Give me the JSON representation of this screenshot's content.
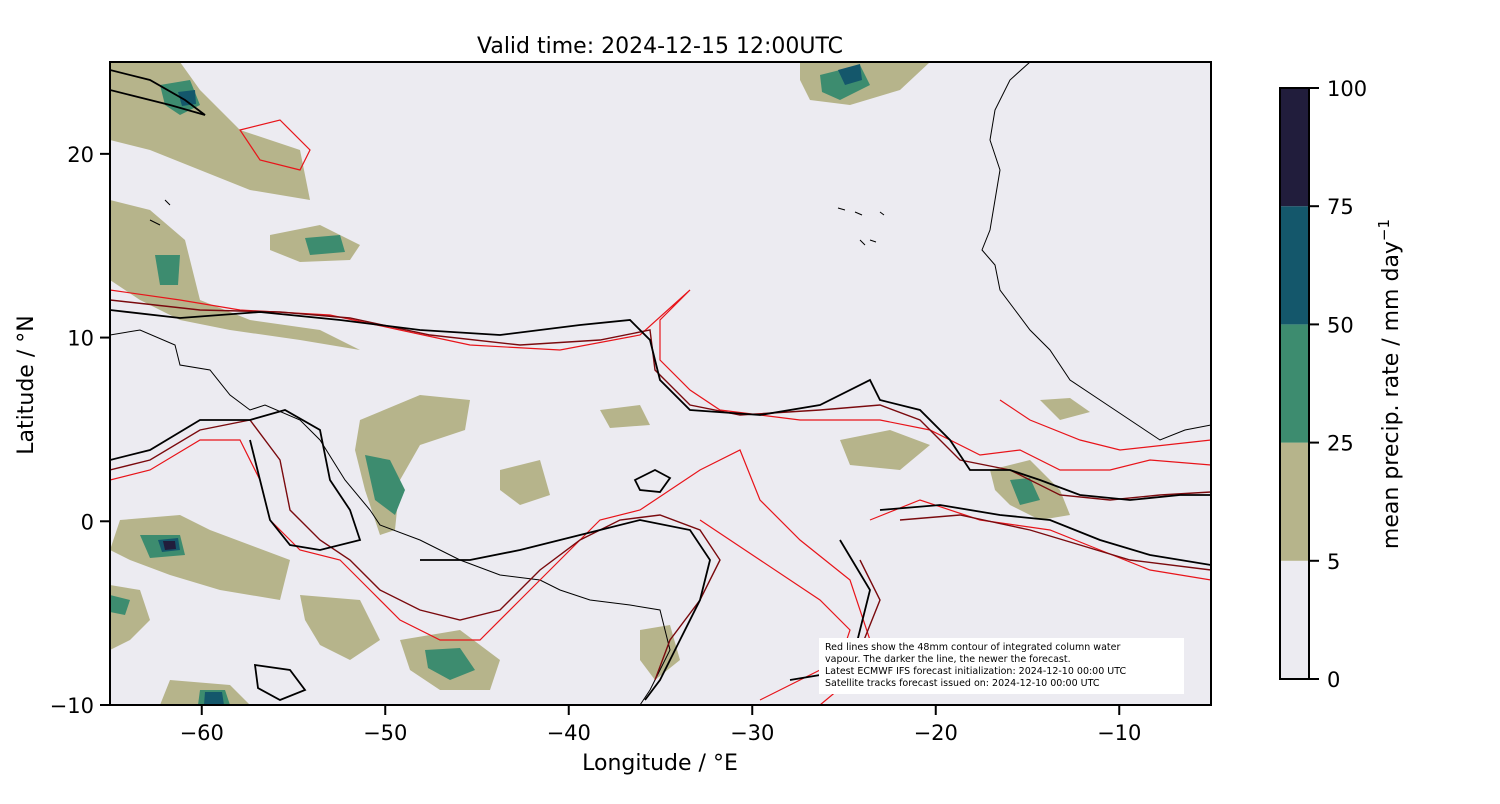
{
  "title": "Valid time: 2024-12-15 12:00UTC",
  "xaxis": {
    "label": "Longitude / °E",
    "range": [
      -65,
      -5
    ],
    "ticks": [
      {
        "value": -60,
        "label": "−60"
      },
      {
        "value": -50,
        "label": "−50"
      },
      {
        "value": -40,
        "label": "−40"
      },
      {
        "value": -30,
        "label": "−30"
      },
      {
        "value": -20,
        "label": "−20"
      },
      {
        "value": -10,
        "label": "−10"
      }
    ]
  },
  "yaxis": {
    "label": "Latitude / °N",
    "range": [
      -10,
      25
    ],
    "ticks": [
      {
        "value": -10,
        "label": "−10"
      },
      {
        "value": 0,
        "label": "0"
      },
      {
        "value": 10,
        "label": "10"
      },
      {
        "value": 20,
        "label": "20"
      }
    ]
  },
  "colorbar": {
    "label": "mean precip. rate / mm day",
    "label_sup": "−1",
    "bounds": [
      0,
      5,
      25,
      50,
      75,
      100
    ],
    "tick_labels": [
      "0",
      "5",
      "25",
      "50",
      "75",
      "100"
    ],
    "colors": [
      "#ecebf1",
      "#b6b48b",
      "#3d8c6f",
      "#14576b",
      "#211d3c"
    ]
  },
  "annotation": [
    "Red lines show the 48mm contour of integrated column water",
    "vapour. The darker the line, the newer the forecast.",
    "Latest ECMWF IFS forecast initialization: 2024-12-10 00:00 UTC",
    "Satellite tracks forecast issued on: 2024-12-10 00:00 UTC"
  ],
  "colors": {
    "background": "#ecebf1",
    "contour_old": "#e8141a",
    "contour_mid": "#7a0a0e",
    "contour_new": "#000000",
    "coastline": "#000000"
  }
}
